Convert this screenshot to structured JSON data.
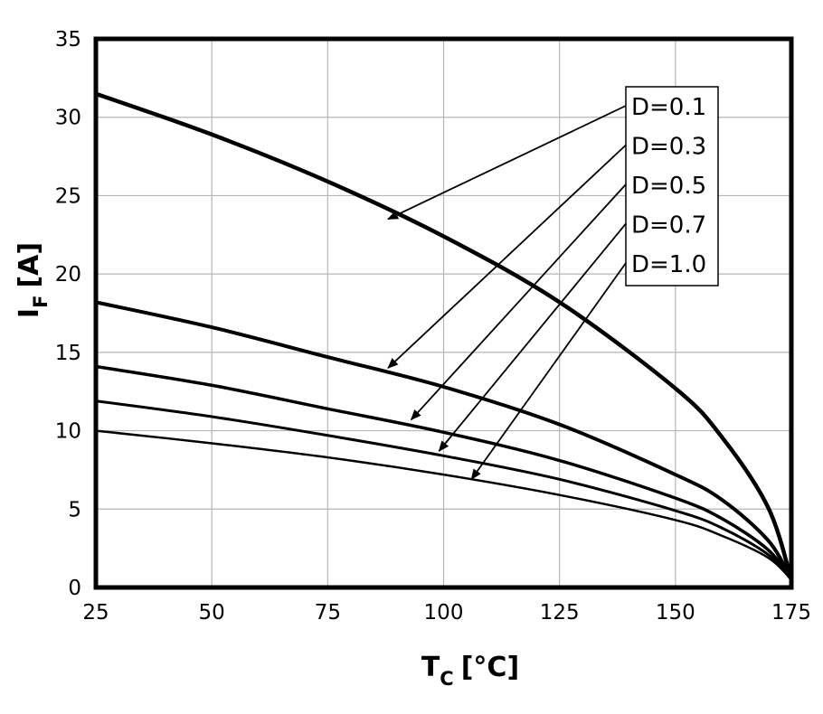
{
  "chart_data": {
    "type": "line",
    "xlabel": {
      "main": "T",
      "sub": "C",
      "unit": "[°C]"
    },
    "ylabel": {
      "main": "I",
      "sub": "F",
      "unit": "[A]"
    },
    "xlim": [
      25,
      175
    ],
    "ylim": [
      0,
      35
    ],
    "xticks": [
      25,
      50,
      75,
      100,
      125,
      150,
      175
    ],
    "yticks": [
      0,
      5,
      10,
      15,
      20,
      25,
      30,
      35
    ],
    "grid": true,
    "series": [
      {
        "name": "D=0.1",
        "stroke": 4.5,
        "x": [
          25,
          50,
          75,
          100,
          125,
          150,
          160,
          170,
          175
        ],
        "y": [
          31.5,
          28.9,
          25.9,
          22.4,
          18.2,
          12.7,
          9.6,
          5.1,
          0.5
        ]
      },
      {
        "name": "D=0.3",
        "stroke": 4,
        "x": [
          25,
          50,
          75,
          100,
          125,
          150,
          160,
          170,
          175
        ],
        "y": [
          18.2,
          16.6,
          14.7,
          12.8,
          10.4,
          7.2,
          5.6,
          3.0,
          0.5
        ]
      },
      {
        "name": "D=0.5",
        "stroke": 3.5,
        "x": [
          25,
          50,
          75,
          100,
          125,
          150,
          160,
          170,
          175
        ],
        "y": [
          14.1,
          12.9,
          11.4,
          9.9,
          8.1,
          5.7,
          4.4,
          2.4,
          0.5
        ]
      },
      {
        "name": "D=0.7",
        "stroke": 3,
        "x": [
          25,
          50,
          75,
          100,
          125,
          150,
          160,
          170,
          175
        ],
        "y": [
          11.9,
          10.9,
          9.7,
          8.4,
          6.9,
          4.9,
          3.8,
          2.1,
          0.5
        ]
      },
      {
        "name": "D=1.0",
        "stroke": 2.5,
        "x": [
          25,
          50,
          75,
          100,
          125,
          150,
          160,
          170,
          175
        ],
        "y": [
          10.0,
          9.2,
          8.3,
          7.2,
          5.9,
          4.3,
          3.3,
          1.9,
          0.5
        ]
      }
    ],
    "annotations": [
      {
        "label": "D=0.1",
        "arrow_to": [
          88,
          23.5
        ]
      },
      {
        "label": "D=0.3",
        "arrow_to": [
          88,
          14.0
        ]
      },
      {
        "label": "D=0.5",
        "arrow_to": [
          93,
          10.7
        ]
      },
      {
        "label": "D=0.7",
        "arrow_to": [
          99,
          8.7
        ]
      },
      {
        "label": "D=1.0",
        "arrow_to": [
          106,
          6.9
        ]
      }
    ]
  }
}
